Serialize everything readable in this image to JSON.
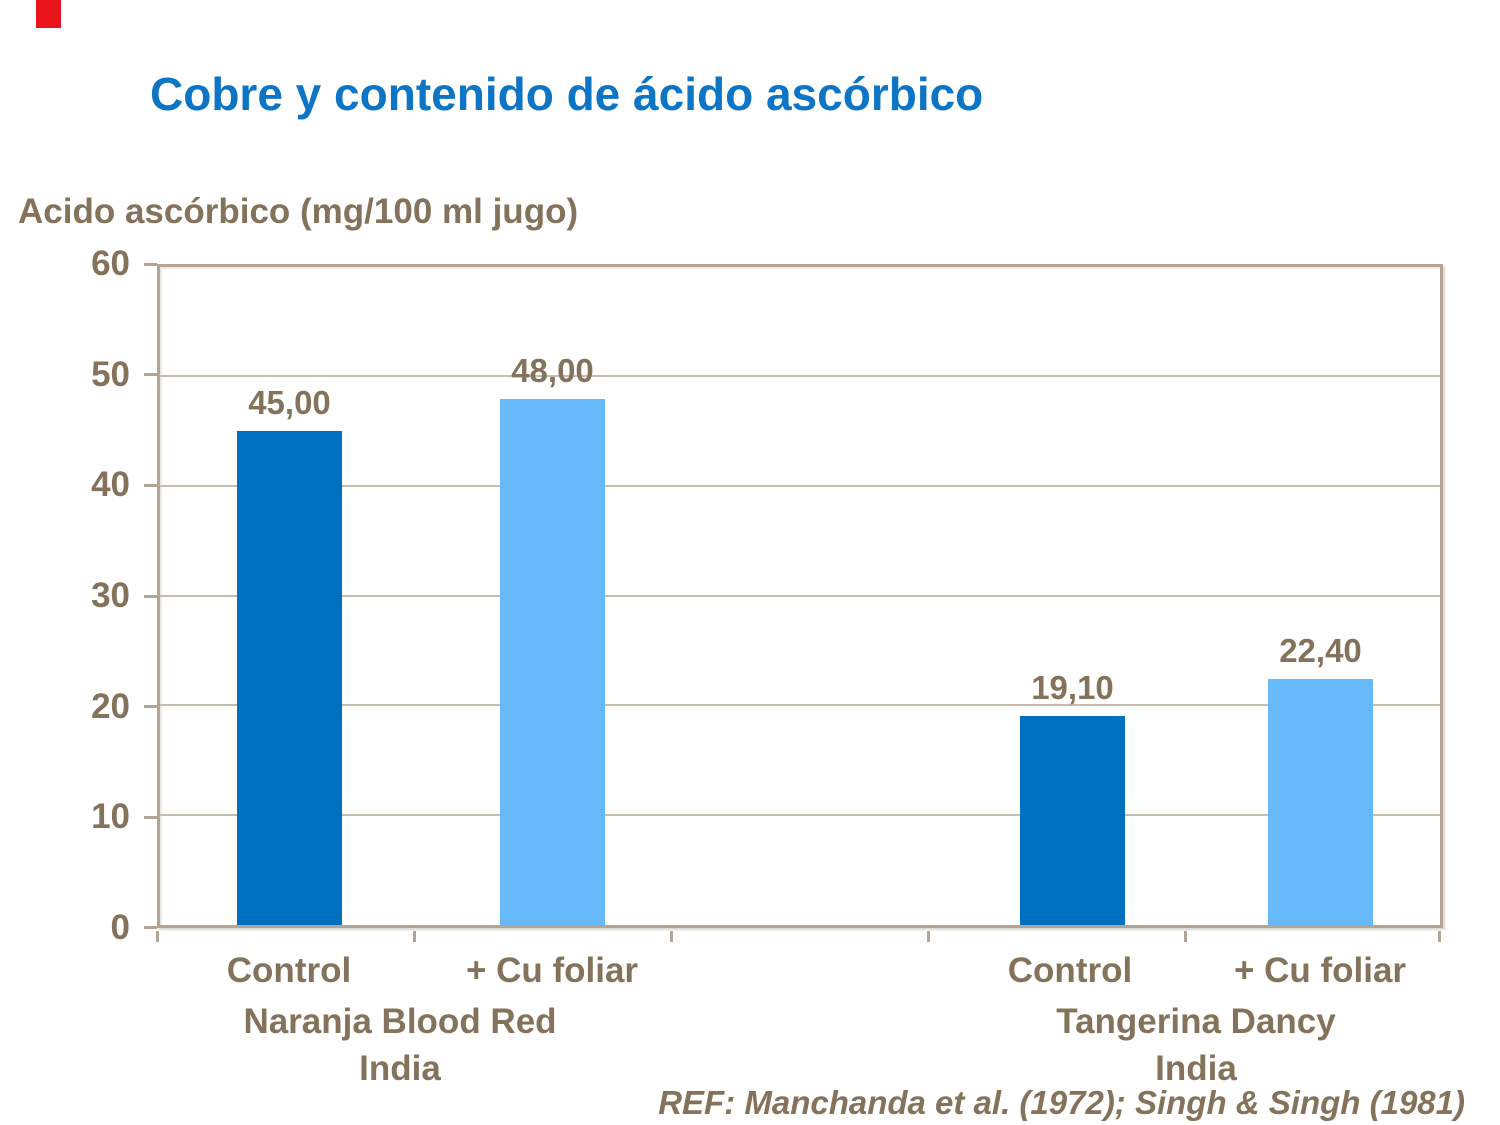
{
  "slide": {
    "title": "Cobre y contenido de ácido ascórbico",
    "title_color": "#0C75C5"
  },
  "decor": {
    "red_tab_color": "#E9151B",
    "text_color": "#84735A",
    "axis_color": "#B3A596",
    "gridline_color": "#C5BDB2"
  },
  "chart_data": {
    "type": "bar",
    "title": "Cobre y contenido de ácido ascórbico",
    "ylabel": "Acido ascórbico (mg/100 ml jugo)",
    "xlabel": "",
    "ylim": [
      0,
      60
    ],
    "ytick_step": 10,
    "ytick_labels": [
      "60",
      "50",
      "40",
      "30",
      "20",
      "10",
      "0"
    ],
    "grid": true,
    "legend": "none",
    "categories": [
      "Control",
      "+ Cu foliar",
      "Control",
      "+ Cu foliar"
    ],
    "bars": [
      {
        "category": "Control",
        "group": "Naranja Blood Red India",
        "value": 45.0,
        "label": "45,00",
        "color": "#0070C0"
      },
      {
        "category": "+ Cu foliar",
        "group": "Naranja Blood Red India",
        "value": 48.0,
        "label": "48,00",
        "color": "#66B9FA"
      },
      {
        "category": "Control",
        "group": "Tangerina Dancy India",
        "value": 19.1,
        "label": "19,10",
        "color": "#0070C0"
      },
      {
        "category": "+ Cu foliar",
        "group": "Tangerina Dancy India",
        "value": 22.4,
        "label": "22,40",
        "color": "#66B9FA"
      }
    ],
    "groups": [
      {
        "name": "Naranja Blood Red",
        "sublabel": "India"
      },
      {
        "name": "Tangerina Dancy",
        "sublabel": "India"
      }
    ]
  },
  "footer": {
    "ref": "REF: Manchanda et al. (1972); Singh & Singh (1981)"
  }
}
